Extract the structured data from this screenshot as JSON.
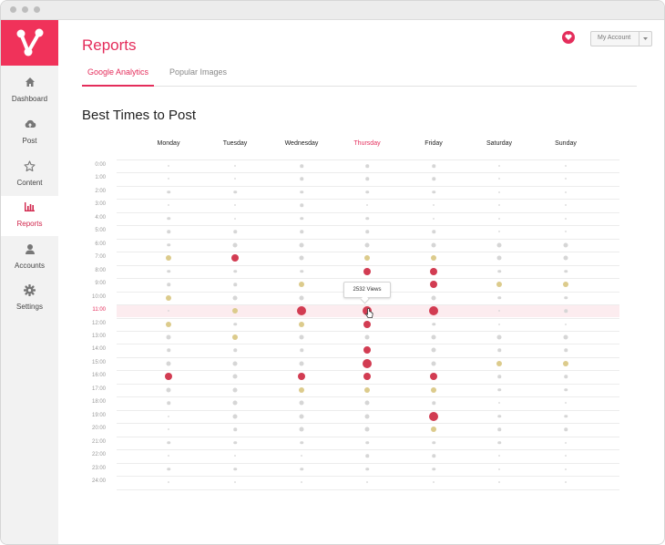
{
  "sidebar": {
    "items": [
      {
        "label": "Dashboard",
        "icon": "home-icon"
      },
      {
        "label": "Post",
        "icon": "cloud-upload-icon"
      },
      {
        "label": "Content",
        "icon": "star-icon"
      },
      {
        "label": "Reports",
        "icon": "bar-chart-icon"
      },
      {
        "label": "Accounts",
        "icon": "user-icon"
      },
      {
        "label": "Settings",
        "icon": "gear-icon"
      }
    ],
    "active_item": "Reports"
  },
  "header": {
    "title": "Reports",
    "account_label": "My Account"
  },
  "tabs": [
    {
      "label": "Google Analytics",
      "active": true
    },
    {
      "label": "Popular Images",
      "active": false
    }
  ],
  "section_title": "Best Times to Post",
  "colors": {
    "accent": "#e42d5b",
    "high": "#d23c52",
    "medium": "#dccb8c",
    "low": "#d6d6d6",
    "highlight_row": "#fcecef"
  },
  "tooltip": {
    "text": "2532 Views"
  },
  "chart_data": {
    "type": "scatter",
    "columns": [
      "Monday",
      "Tuesday",
      "Wednesday",
      "Thursday",
      "Friday",
      "Saturday",
      "Sunday"
    ],
    "rows": [
      "0:00",
      "1:00",
      "2:00",
      "3:00",
      "4:00",
      "5:00",
      "6:00",
      "7:00",
      "8:00",
      "9:00",
      "10:00",
      "11:00",
      "12:00",
      "13:00",
      "14:00",
      "15:00",
      "16:00",
      "17:00",
      "18:00",
      "19:00",
      "20:00",
      "21:00",
      "22:00",
      "23:00",
      "24:00"
    ],
    "highlighted_column": "Thursday",
    "highlighted_row": "11:00",
    "level_scale": "0 = faint, 1 = light grey, 2 = grey, 3 = tan, 4 = red, 5 = large red",
    "levels": [
      [
        0,
        0,
        1,
        1,
        1,
        0,
        0
      ],
      [
        0,
        0,
        1,
        1,
        1,
        0,
        0
      ],
      [
        1,
        1,
        1,
        1,
        1,
        0,
        0
      ],
      [
        0,
        0,
        1,
        0,
        0,
        0,
        0
      ],
      [
        1,
        0,
        1,
        1,
        0,
        0,
        0
      ],
      [
        1,
        1,
        1,
        1,
        1,
        0,
        0
      ],
      [
        1,
        2,
        2,
        2,
        2,
        2,
        2
      ],
      [
        3,
        4,
        2,
        3,
        3,
        2,
        2
      ],
      [
        1,
        1,
        1,
        4,
        4,
        1,
        1
      ],
      [
        1,
        1,
        3,
        2,
        4,
        3,
        3
      ],
      [
        3,
        2,
        2,
        2,
        2,
        1,
        1
      ],
      [
        0,
        3,
        5,
        5,
        5,
        0,
        1
      ],
      [
        3,
        1,
        3,
        4,
        1,
        0,
        0
      ],
      [
        2,
        3,
        2,
        2,
        2,
        2,
        2
      ],
      [
        1,
        1,
        1,
        4,
        2,
        1,
        1
      ],
      [
        2,
        2,
        2,
        5,
        2,
        3,
        3
      ],
      [
        4,
        2,
        4,
        4,
        4,
        1,
        1
      ],
      [
        2,
        2,
        3,
        3,
        3,
        1,
        1
      ],
      [
        1,
        2,
        2,
        2,
        1,
        0,
        0
      ],
      [
        0,
        2,
        2,
        2,
        5,
        1,
        1
      ],
      [
        0,
        1,
        2,
        2,
        3,
        1,
        1
      ],
      [
        1,
        1,
        1,
        1,
        1,
        1,
        0
      ],
      [
        0,
        0,
        0,
        1,
        1,
        0,
        0
      ],
      [
        1,
        1,
        1,
        1,
        1,
        0,
        0
      ],
      [
        0,
        0,
        0,
        0,
        0,
        0,
        0
      ]
    ]
  }
}
